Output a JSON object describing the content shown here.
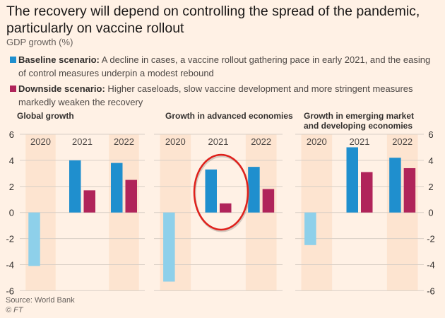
{
  "header": {
    "title": "The recovery will depend on controlling the spread of the pandemic, particularly on vaccine rollout",
    "subtitle": "GDP growth (%)"
  },
  "legend": [
    {
      "label": "Baseline scenario:",
      "text": " A decline in cases, a vaccine rollout gathering pace in early 2021, and the easing of control measures underpin a modest rebound",
      "color": "#1f8fce"
    },
    {
      "label": "Downside scenario:",
      "text": " Higher caseloads, slow vaccine development and more stringent measures markedly weaken the recovery",
      "color": "#b0245a"
    }
  ],
  "footer": {
    "source": "Source: World Bank",
    "copyright": "© FT"
  },
  "colors": {
    "baseline": "#1f8fce",
    "downside": "#b0245a",
    "actual_2020": "#8ed0ea",
    "band": "#fde4d0",
    "grid": "#d9cfc6",
    "highlight_circle": "#e0201b"
  },
  "chart_data": [
    {
      "type": "bar",
      "title": "Global growth",
      "categories": [
        "2020",
        "2021",
        "2022"
      ],
      "series": [
        {
          "name": "Baseline scenario",
          "values": [
            -4.1,
            4.0,
            3.8
          ]
        },
        {
          "name": "Downside scenario",
          "values": [
            null,
            1.7,
            2.5
          ]
        }
      ],
      "ylim": [
        -6,
        6
      ],
      "yticks": [
        "6",
        "4",
        "2",
        "0",
        "-2",
        "-4",
        "-6"
      ],
      "yaxis_side": "left",
      "grid": true
    },
    {
      "type": "bar",
      "title": "Growth in advanced economies",
      "categories": [
        "2020",
        "2021",
        "2022"
      ],
      "series": [
        {
          "name": "Baseline scenario",
          "values": [
            -5.3,
            3.3,
            3.5
          ]
        },
        {
          "name": "Downside scenario",
          "values": [
            null,
            0.7,
            1.8
          ]
        }
      ],
      "ylim": [
        -6,
        6
      ],
      "annotation": "red circle around 2021 bars",
      "grid": true
    },
    {
      "type": "bar",
      "title": "Growth in emerging market and developing economies",
      "categories": [
        "2020",
        "2021",
        "2022"
      ],
      "series": [
        {
          "name": "Baseline scenario",
          "values": [
            -2.5,
            5.0,
            4.2
          ]
        },
        {
          "name": "Downside scenario",
          "values": [
            null,
            3.1,
            3.4
          ]
        }
      ],
      "ylim": [
        -6,
        6
      ],
      "yticks": [
        "6",
        "4",
        "2",
        "0",
        "-2",
        "-4",
        "-6"
      ],
      "yaxis_side": "right",
      "grid": true
    }
  ]
}
